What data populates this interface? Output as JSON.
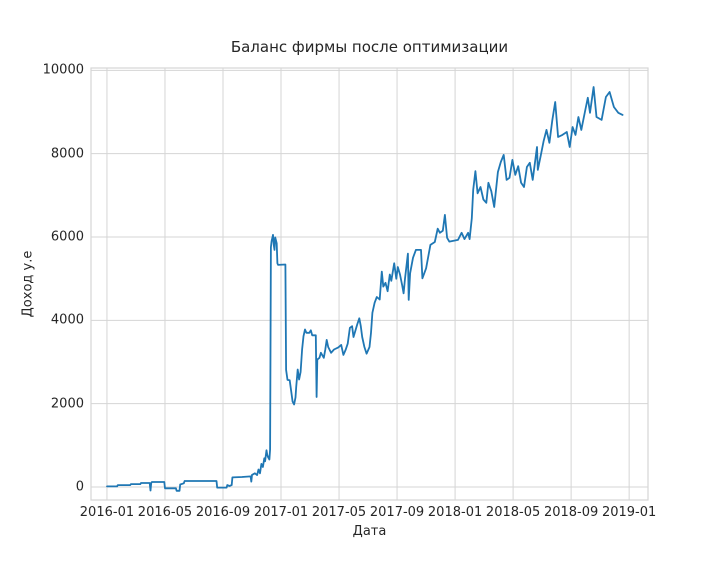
{
  "figure": {
    "title": "Баланс фирмы после оптимизации",
    "xlabel": "Дата",
    "ylabel": "Доход у.е",
    "background_color": "#ffffff",
    "text_color": "#262626"
  },
  "chart_data": {
    "type": "line",
    "title": "Баланс фирмы после оптимизации",
    "xlabel": "Дата",
    "ylabel": "Доход у.е",
    "line_color": "#1f77b4",
    "grid": true,
    "grid_color": "#d5d5d5",
    "legend": null,
    "x_tick_labels": [
      "2016-01",
      "2016-05",
      "2016-09",
      "2017-01",
      "2017-05",
      "2017-09",
      "2018-01",
      "2018-05",
      "2018-09",
      "2019-01"
    ],
    "x_tick_positions": [
      0,
      4,
      8,
      12,
      16,
      20,
      24,
      28,
      32,
      36
    ],
    "y_ticks": [
      0,
      2000,
      4000,
      6000,
      8000,
      10000
    ],
    "xlim": [
      -1.1,
      37.3
    ],
    "ylim": [
      -312,
      10056
    ],
    "x_unit": "months since 2016-01",
    "series": [
      {
        "x": [
          0.0,
          0.7,
          0.75,
          1.6,
          1.65,
          2.3,
          2.35,
          2.95,
          3.0,
          3.05,
          3.1,
          3.95,
          4.0,
          4.75,
          4.8,
          5.0,
          5.05,
          5.3,
          5.35,
          7.55,
          7.6,
          8.25,
          8.3,
          8.45,
          8.6,
          8.65,
          9.3,
          9.9,
          9.95,
          10.0,
          10.2,
          10.35,
          10.45,
          10.55,
          10.65,
          10.75,
          10.85,
          10.9,
          11.0,
          11.05,
          11.1,
          11.2,
          11.25,
          11.3,
          11.35,
          11.45,
          11.5,
          11.55,
          11.6,
          11.7,
          11.75,
          11.8,
          12.3,
          12.35,
          12.45,
          12.6,
          12.7,
          12.8,
          12.9,
          13.0,
          13.05,
          13.15,
          13.25,
          13.35,
          13.45,
          13.55,
          13.65,
          13.75,
          13.95,
          14.05,
          14.15,
          14.4,
          14.45,
          14.5,
          14.65,
          14.75,
          14.95,
          15.05,
          15.15,
          15.25,
          15.45,
          15.65,
          15.95,
          16.15,
          16.3,
          16.45,
          16.6,
          16.75,
          16.9,
          17.0,
          17.1,
          17.25,
          17.4,
          17.5,
          17.6,
          17.75,
          17.9,
          18.1,
          18.2,
          18.3,
          18.45,
          18.6,
          18.8,
          18.95,
          19.05,
          19.2,
          19.35,
          19.5,
          19.6,
          19.8,
          19.95,
          20.05,
          20.2,
          20.35,
          20.45,
          20.55,
          20.75,
          20.8,
          20.9,
          21.1,
          21.3,
          21.65,
          21.75,
          22.0,
          22.3,
          22.6,
          22.8,
          22.95,
          23.15,
          23.3,
          23.45,
          23.6,
          24.2,
          24.45,
          24.65,
          24.9,
          25.0,
          25.15,
          25.25,
          25.4,
          25.55,
          25.75,
          25.95,
          26.15,
          26.3,
          26.5,
          26.7,
          26.95,
          27.15,
          27.35,
          27.55,
          27.75,
          27.95,
          28.15,
          28.35,
          28.55,
          28.75,
          28.95,
          29.15,
          29.35,
          29.55,
          29.65,
          29.7,
          29.9,
          30.1,
          30.3,
          30.5,
          30.7,
          30.9,
          31.1,
          31.4,
          31.7,
          31.9,
          32.1,
          32.3,
          32.5,
          32.7,
          32.95,
          33.15,
          33.3,
          33.55,
          33.75,
          34.1,
          34.4,
          34.65,
          34.95,
          35.25,
          35.55
        ],
        "y": [
          15,
          15,
          45,
          45,
          70,
          70,
          95,
          95,
          -85,
          95,
          120,
          120,
          -30,
          -30,
          -90,
          -90,
          60,
          90,
          145,
          145,
          -15,
          -15,
          45,
          25,
          45,
          230,
          240,
          255,
          130,
          290,
          330,
          285,
          420,
          330,
          555,
          480,
          690,
          620,
          880,
          780,
          720,
          660,
          905,
          5750,
          5900,
          6050,
          5800,
          5690,
          5990,
          5850,
          5370,
          5330,
          5340,
          2810,
          2570,
          2560,
          2300,
          2050,
          1980,
          2150,
          2400,
          2820,
          2580,
          2760,
          3300,
          3620,
          3780,
          3700,
          3700,
          3760,
          3640,
          3640,
          2160,
          3060,
          3100,
          3220,
          3100,
          3300,
          3530,
          3360,
          3220,
          3300,
          3350,
          3410,
          3170,
          3290,
          3440,
          3820,
          3860,
          3600,
          3720,
          3900,
          4050,
          3860,
          3600,
          3360,
          3200,
          3360,
          3700,
          4180,
          4420,
          4560,
          4500,
          5170,
          4810,
          4900,
          4700,
          5100,
          4950,
          5370,
          5000,
          5280,
          5100,
          4850,
          4650,
          5000,
          5600,
          4490,
          5130,
          5500,
          5690,
          5690,
          5010,
          5250,
          5810,
          5880,
          6200,
          6100,
          6150,
          6530,
          5980,
          5890,
          5930,
          6100,
          5950,
          6100,
          5950,
          6450,
          7130,
          7580,
          7050,
          7200,
          6900,
          6820,
          7300,
          7100,
          6720,
          7560,
          7800,
          7970,
          7370,
          7420,
          7850,
          7490,
          7700,
          7300,
          7200,
          7680,
          7780,
          7370,
          7900,
          8160,
          7610,
          7950,
          8300,
          8570,
          8260,
          8800,
          9240,
          8400,
          8450,
          8520,
          8160,
          8640,
          8450,
          8880,
          8570,
          9000,
          9340,
          8980,
          9600,
          8880,
          8810,
          9360,
          9480,
          9120,
          8980,
          8930
        ]
      }
    ]
  }
}
